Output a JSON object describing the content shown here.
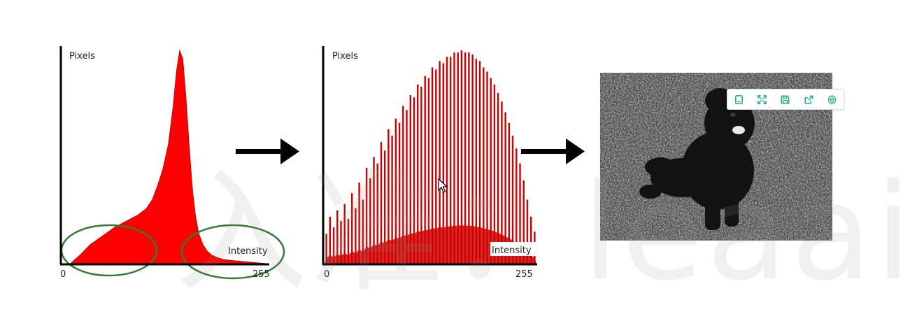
{
  "chart_data": [
    {
      "type": "area",
      "title": "",
      "ylabel": "Pixels",
      "xlabel": "Intensity",
      "x_ticks": [
        "0",
        "255"
      ],
      "xlim": [
        0,
        255
      ],
      "ylim": [
        0,
        1
      ],
      "grid": false,
      "color": "#ff0000",
      "series": [
        {
          "x": [
            0,
            10,
            22,
            35,
            50,
            65,
            80,
            95,
            105,
            112,
            118,
            125,
            132,
            138,
            142,
            146,
            150,
            154,
            158,
            162,
            166,
            170,
            175,
            180,
            186,
            192,
            200,
            210,
            225,
            240,
            255
          ],
          "values": [
            0.0,
            0.0,
            0.04,
            0.09,
            0.13,
            0.17,
            0.2,
            0.23,
            0.26,
            0.3,
            0.36,
            0.44,
            0.56,
            0.74,
            0.9,
            1.0,
            0.96,
            0.78,
            0.55,
            0.35,
            0.22,
            0.14,
            0.09,
            0.06,
            0.04,
            0.03,
            0.02,
            0.015,
            0.01,
            0.005,
            0.0
          ]
        }
      ],
      "annotations": [
        "left-tail-ellipse",
        "right-tail-ellipse"
      ],
      "annotation_color": "#2e7d32"
    },
    {
      "type": "bar",
      "title": "",
      "ylabel": "Pixels",
      "xlabel": "Intensity",
      "x_ticks": [
        "0",
        "255"
      ],
      "xlim": [
        0,
        255
      ],
      "ylim": [
        0,
        1
      ],
      "grid": false,
      "color": "#cc0000",
      "series": [
        {
          "values": [
            0.14,
            0.22,
            0.17,
            0.25,
            0.2,
            0.28,
            0.21,
            0.33,
            0.26,
            0.38,
            0.3,
            0.45,
            0.4,
            0.5,
            0.47,
            0.57,
            0.53,
            0.63,
            0.6,
            0.68,
            0.66,
            0.74,
            0.72,
            0.79,
            0.78,
            0.84,
            0.83,
            0.88,
            0.87,
            0.92,
            0.91,
            0.95,
            0.94,
            0.97,
            0.97,
            0.99,
            0.99,
            1.0,
            0.99,
            0.99,
            0.98,
            0.96,
            0.95,
            0.92,
            0.9,
            0.87,
            0.84,
            0.8,
            0.76,
            0.71,
            0.66,
            0.6,
            0.54,
            0.47,
            0.39,
            0.3,
            0.22,
            0.15
          ]
        }
      ]
    }
  ],
  "arrows": [
    "right-arrow",
    "right-arrow"
  ],
  "toolbar": {
    "buttons": [
      {
        "icon": "copy-icon"
      },
      {
        "icon": "fullscreen-icon"
      },
      {
        "icon": "save-icon"
      },
      {
        "icon": "share-icon"
      },
      {
        "icon": "settings-icon"
      }
    ],
    "accent": "#1aaa8a"
  },
  "watermark": {
    "text": "入准：leaaiv.cn"
  }
}
